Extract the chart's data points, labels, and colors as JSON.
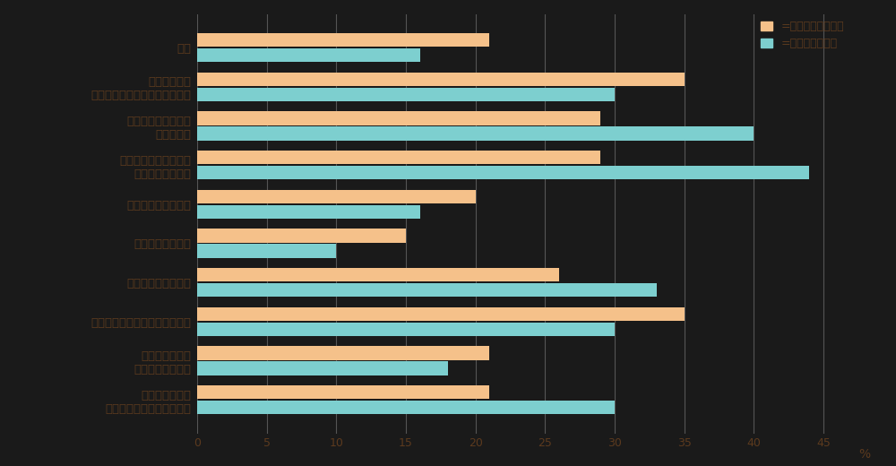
{
  "categories": [
    "転職",
    "働き方の変化\n（リモートワークの導入など）",
    "将来について考える\n時間の増加",
    "ライフスタイルの変化\n（外出自粛など）",
    "勤務先の業績の悪化",
    "副業・兼業の開始",
    "日本の経済の停滞感",
    "自身の職種の将来に対する不安",
    "所属する業界の\n将来に対する不安",
    "ライフイベント\n（結婚・出産・病気など）"
  ],
  "career_values": [
    21,
    35,
    29,
    29,
    20,
    15,
    26,
    35,
    21,
    21
  ],
  "life_values": [
    16,
    30,
    40,
    44,
    16,
    10,
    33,
    30,
    18,
    30
  ],
  "career_color": "#F5C18A",
  "life_color": "#7DCFCF",
  "background_color": "#1a1a1a",
  "text_color": "#5C3A1E",
  "axis_label_color": "#5C3A1E",
  "grid_color": "#555555",
  "xlabel": "%",
  "xlim": [
    0,
    47
  ],
  "xticks": [
    0,
    5,
    10,
    15,
    20,
    25,
    30,
    35,
    40,
    45
  ],
  "legend_career": "=キャリアビジョン",
  "legend_life": "=ライフビジョン",
  "bar_height": 0.35,
  "bar_gap": 0.04
}
